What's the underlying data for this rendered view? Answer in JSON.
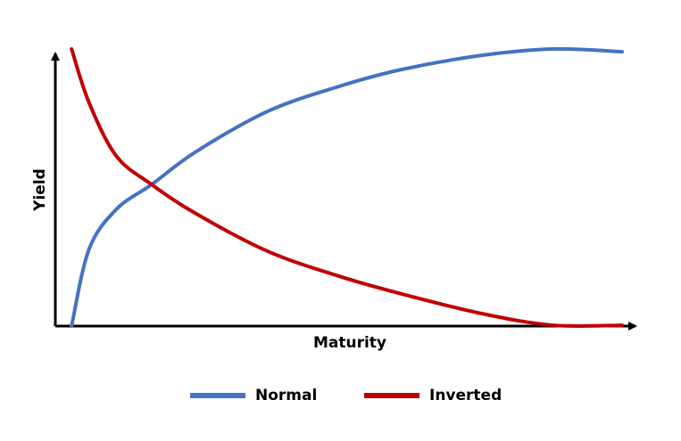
{
  "chart_data": {
    "type": "line",
    "x_label": "Maturity",
    "y_label": "Yield",
    "x": [
      2.8,
      5.8,
      10.5,
      16.6,
      24.3,
      36.6,
      48.9,
      59.7,
      73.5,
      85.8,
      97.7
    ],
    "series": [
      {
        "name": "Normal",
        "color": "#4472c4",
        "values": [
          0,
          27.7,
          42.1,
          51.1,
          63.0,
          77.5,
          86.5,
          92.6,
          97.7,
          100,
          99.0
        ]
      },
      {
        "name": "Inverted",
        "color": "#c00000",
        "values": [
          100,
          80.7,
          61.4,
          51.1,
          40.5,
          27.0,
          18.0,
          11.6,
          4.5,
          0.3,
          0.3
        ]
      }
    ],
    "xlim": [
      0,
      100
    ],
    "ylim": [
      0,
      100
    ],
    "grid": false,
    "legend": "bottom"
  }
}
